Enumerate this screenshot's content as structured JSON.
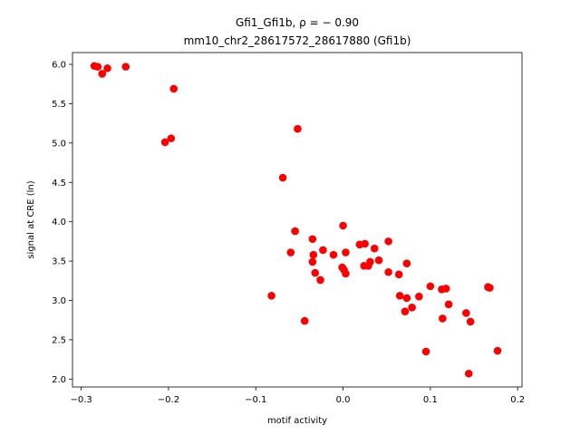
{
  "chart_data": {
    "type": "scatter",
    "title_line1": "Gfi1_Gfi1b, ρ = − 0.90",
    "title_line2": "mm10_chr2_28617572_28617880 (Gfi1b)",
    "xlabel": "motif activity",
    "ylabel": "signal at CRE (ln)",
    "xlim": [
      -0.31,
      0.205
    ],
    "ylim": [
      1.9,
      6.15
    ],
    "xticks": [
      -0.3,
      -0.2,
      -0.1,
      0.0,
      0.1,
      0.2
    ],
    "xtick_labels": [
      "−0.3",
      "−0.2",
      "−0.1",
      "0.0",
      "0.1",
      "0.2"
    ],
    "yticks": [
      2.0,
      2.5,
      3.0,
      3.5,
      4.0,
      4.5,
      5.0,
      5.5,
      6.0
    ],
    "ytick_labels": [
      "2.0",
      "2.5",
      "3.0",
      "3.5",
      "4.0",
      "4.5",
      "5.0",
      "5.5",
      "6.0"
    ],
    "grid": false,
    "marker_color": "#ff0000",
    "points": [
      [
        -0.285,
        5.98
      ],
      [
        -0.281,
        5.97
      ],
      [
        -0.276,
        5.88
      ],
      [
        -0.27,
        5.95
      ],
      [
        -0.249,
        5.97
      ],
      [
        -0.194,
        5.69
      ],
      [
        -0.204,
        5.01
      ],
      [
        -0.197,
        5.06
      ],
      [
        -0.052,
        5.18
      ],
      [
        -0.069,
        4.56
      ],
      [
        -0.055,
        3.88
      ],
      [
        -0.06,
        3.61
      ],
      [
        -0.035,
        3.78
      ],
      [
        -0.034,
        3.58
      ],
      [
        -0.035,
        3.49
      ],
      [
        -0.032,
        3.35
      ],
      [
        -0.026,
        3.26
      ],
      [
        -0.023,
        3.64
      ],
      [
        -0.011,
        3.58
      ],
      [
        0.0,
        3.95
      ],
      [
        0.003,
        3.61
      ],
      [
        -0.001,
        3.42
      ],
      [
        0.001,
        3.39
      ],
      [
        0.003,
        3.34
      ],
      [
        0.019,
        3.71
      ],
      [
        0.025,
        3.72
      ],
      [
        0.036,
        3.66
      ],
      [
        0.024,
        3.44
      ],
      [
        0.029,
        3.44
      ],
      [
        0.031,
        3.49
      ],
      [
        0.041,
        3.51
      ],
      [
        0.052,
        3.75
      ],
      [
        0.052,
        3.36
      ],
      [
        0.064,
        3.33
      ],
      [
        0.073,
        3.47
      ],
      [
        0.065,
        3.06
      ],
      [
        0.073,
        3.03
      ],
      [
        0.071,
        2.86
      ],
      [
        0.079,
        2.91
      ],
      [
        0.087,
        3.05
      ],
      [
        0.1,
        3.18
      ],
      [
        0.113,
        3.14
      ],
      [
        0.118,
        3.15
      ],
      [
        0.121,
        2.95
      ],
      [
        0.114,
        2.77
      ],
      [
        0.095,
        2.35
      ],
      [
        0.141,
        2.84
      ],
      [
        0.146,
        2.73
      ],
      [
        0.166,
        3.17
      ],
      [
        0.168,
        3.16
      ],
      [
        0.177,
        2.36
      ],
      [
        0.144,
        2.07
      ],
      [
        -0.082,
        3.06
      ],
      [
        -0.044,
        2.74
      ]
    ]
  }
}
